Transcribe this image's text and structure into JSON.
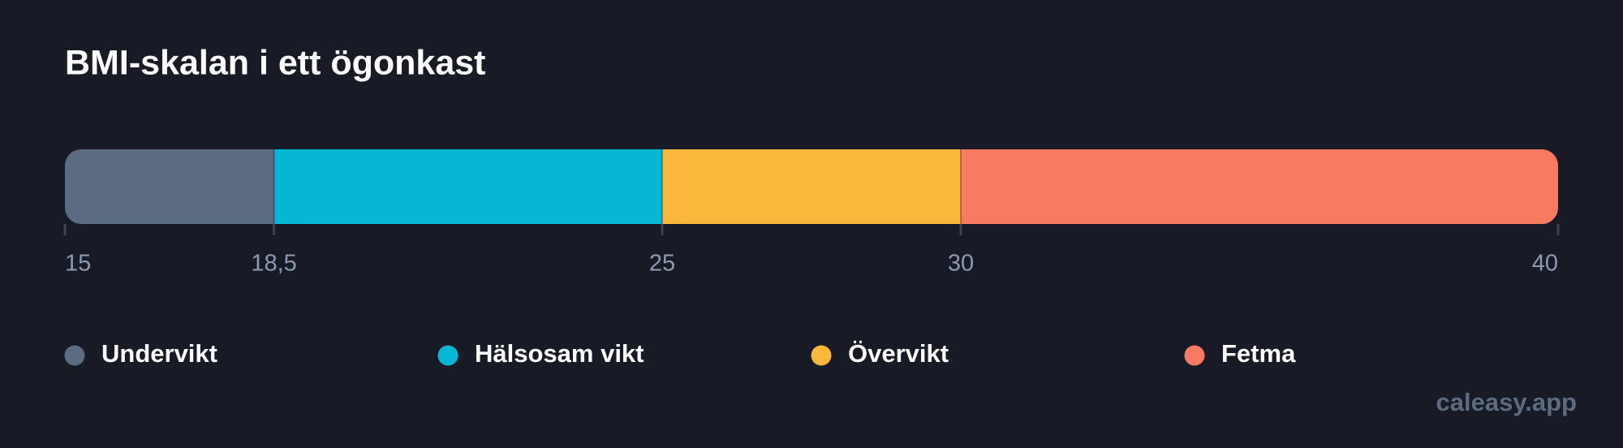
{
  "chart_data": {
    "type": "range-bar",
    "title": "BMI-skalan i ett ögonkast",
    "xlim": [
      15,
      40
    ],
    "xticks": [
      15,
      {
        "value": 18.5,
        "label": "18,5"
      },
      25,
      30,
      40
    ],
    "segments": [
      {
        "name": "Undervikt",
        "color": "#5b6b82",
        "range": [
          15,
          18.5
        ]
      },
      {
        "name": "Hälsosam vikt",
        "color": "#06b6d4",
        "range": [
          18.5,
          25
        ]
      },
      {
        "name": "Övervikt",
        "color": "#f9b73b",
        "range": [
          25,
          30
        ]
      },
      {
        "name": "Fetma",
        "color": "#f87b61",
        "range": [
          30,
          40
        ]
      }
    ],
    "watermark": "caleasy.app"
  }
}
